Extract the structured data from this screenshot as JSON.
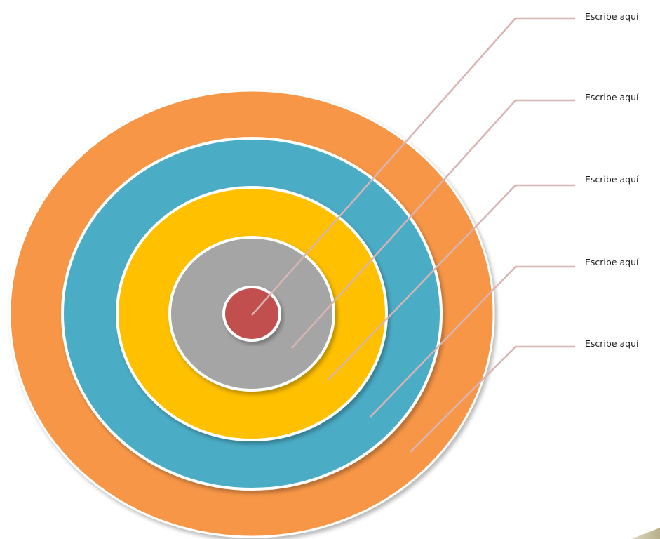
{
  "rings": [
    {
      "name": "outer-ring",
      "color": "#f79646"
    },
    {
      "name": "second-ring",
      "color": "#4bacc6"
    },
    {
      "name": "third-ring",
      "color": "#ffc000"
    },
    {
      "name": "fourth-ring",
      "color": "#a5a5a5"
    },
    {
      "name": "center",
      "color": "#c0504d"
    }
  ],
  "callouts": [
    {
      "label": "Escribe aquí"
    },
    {
      "label": "Escribe aquí"
    },
    {
      "label": "Escribe aquí"
    },
    {
      "label": "Escribe aquí"
    },
    {
      "label": "Escribe aquí"
    }
  ],
  "colors": {
    "leader_line": "#d8b4b4",
    "ring_outline": "#ffffff",
    "corner_accent": "#c4bd97"
  }
}
